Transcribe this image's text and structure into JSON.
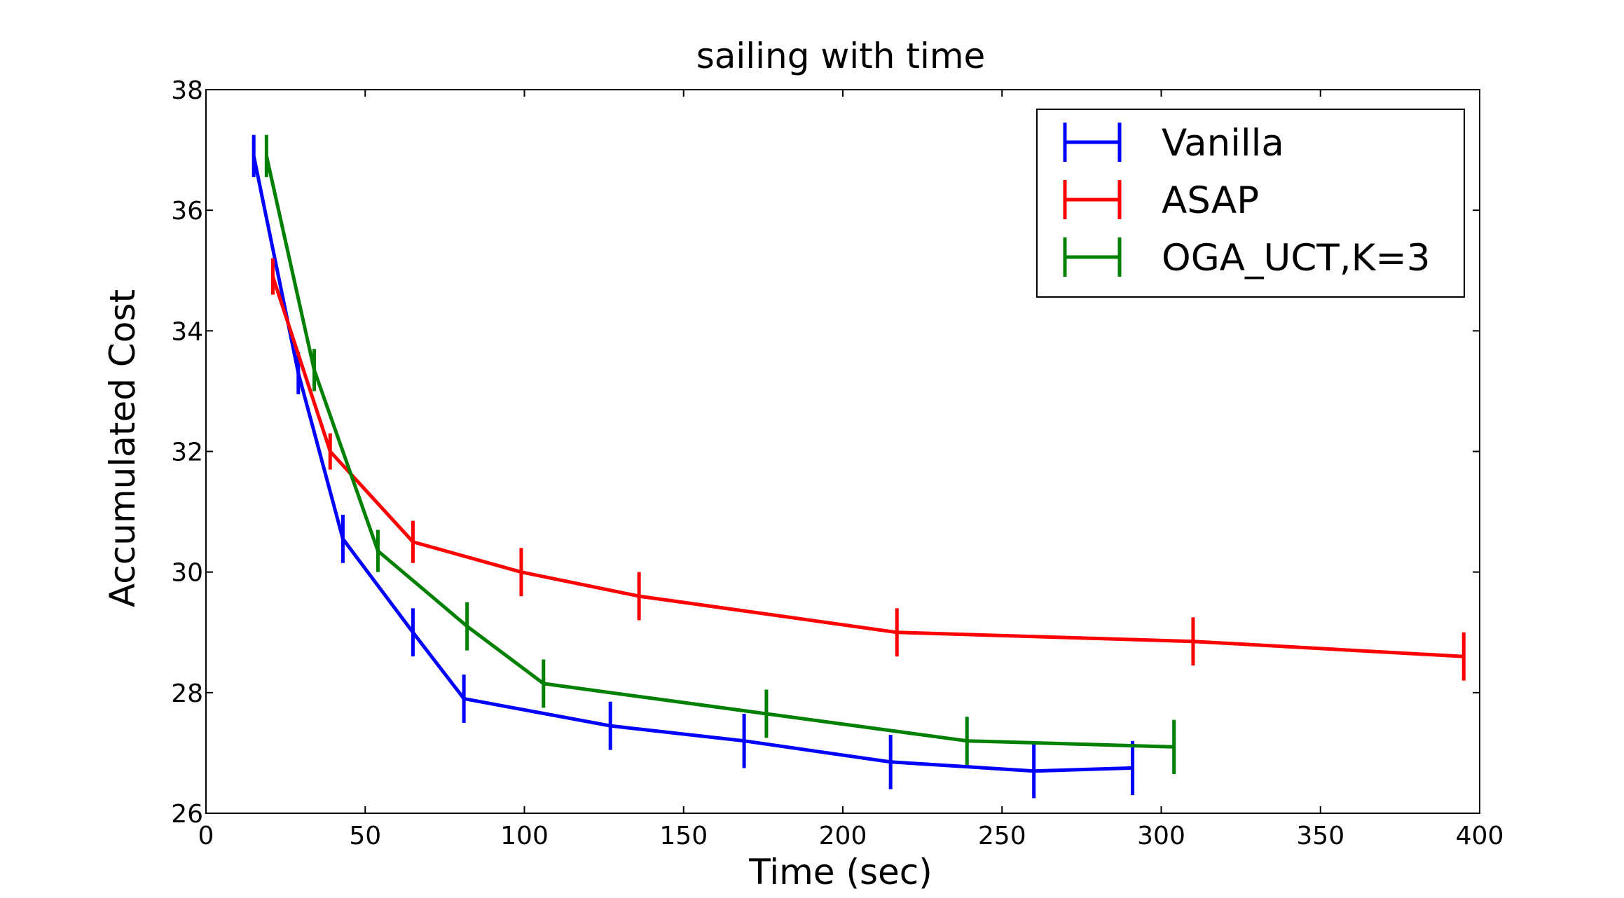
{
  "chart_data": {
    "type": "line",
    "title": "sailing with time",
    "xlabel": "Time (sec)",
    "ylabel": "Accumulated Cost",
    "xlim": [
      0,
      400
    ],
    "ylim": [
      26,
      38
    ],
    "xticks": [
      0,
      50,
      100,
      150,
      200,
      250,
      300,
      350,
      400
    ],
    "yticks": [
      26,
      28,
      30,
      32,
      34,
      36,
      38
    ],
    "grid": false,
    "legend_position": "top-right",
    "series": [
      {
        "name": "Vanilla",
        "color": "#0000ff",
        "x": [
          15,
          29,
          43,
          65,
          81,
          127,
          169,
          215,
          260,
          291
        ],
        "y": [
          36.9,
          33.3,
          30.55,
          29.0,
          27.9,
          27.45,
          27.2,
          26.85,
          26.7,
          26.75
        ],
        "err": [
          0.35,
          0.35,
          0.4,
          0.4,
          0.4,
          0.4,
          0.45,
          0.45,
          0.45,
          0.45
        ]
      },
      {
        "name": "ASAP",
        "color": "#ff0000",
        "x": [
          21,
          39,
          65,
          99,
          136,
          217,
          310,
          395
        ],
        "y": [
          34.9,
          32.0,
          30.5,
          30.0,
          29.6,
          29.0,
          28.85,
          28.6
        ],
        "err": [
          0.3,
          0.3,
          0.35,
          0.4,
          0.4,
          0.4,
          0.4,
          0.4
        ]
      },
      {
        "name": "OGA_UCT,K=3",
        "color": "#008000",
        "x": [
          19,
          34,
          54,
          82,
          106,
          176,
          239,
          304
        ],
        "y": [
          36.9,
          33.35,
          30.35,
          29.1,
          28.15,
          27.65,
          27.2,
          27.1
        ],
        "err": [
          0.35,
          0.35,
          0.35,
          0.4,
          0.4,
          0.4,
          0.4,
          0.45
        ]
      }
    ]
  }
}
